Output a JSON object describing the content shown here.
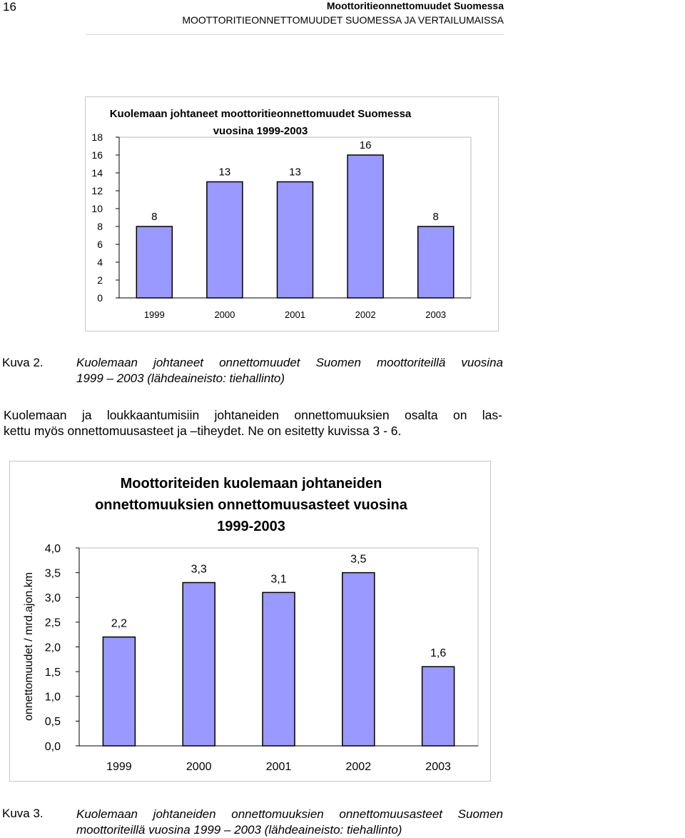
{
  "header": {
    "page_number": "16",
    "running_title": "Moottoritieonnettomuudet Suomessa",
    "running_subtitle": "MOOTTORITIEONNETTOMUUDET SUOMESSA JA VERTAILUMAISSA"
  },
  "figure2": {
    "label": "Kuva 2.",
    "caption_line1": "Kuolemaan johtaneet onnettomuudet Suomen moottoriteillä vuosina",
    "caption_line2": "1999 – 2003 (lähdeaineisto: tiehallinto)"
  },
  "paragraph": {
    "line1": "Kuolemaan ja loukkaantumisiin johtaneiden onnettomuuksien osalta on las-",
    "line2": "kettu myös onnettomuusasteet ja –tiheydet. Ne on esitetty kuvissa 3 - 6."
  },
  "figure3": {
    "label": "Kuva 3.",
    "caption_line1": "Kuolemaan johtaneiden onnettomuuksien onnettomuusasteet Suomen",
    "caption_line2": "moottoriteillä vuosina 1999 – 2003 (lähdeaineisto: tiehallinto)"
  },
  "colors": {
    "bar_fill": "#9999ff",
    "bar_stroke": "#000000",
    "frame": "#c8c8c8",
    "grid": "#bbbbbb"
  },
  "chart_data": [
    {
      "type": "bar",
      "title_line1": "Kuolemaan johtaneet moottoritieonnettomuudet Suomessa",
      "title_line2": "vuosina 1999-2003",
      "categories": [
        "1999",
        "2000",
        "2001",
        "2002",
        "2003"
      ],
      "values": [
        8,
        13,
        13,
        16,
        8
      ],
      "data_labels": [
        "8",
        "13",
        "13",
        "16",
        "8"
      ],
      "ylim": [
        0,
        18
      ],
      "yticks": [
        "0",
        "2",
        "4",
        "6",
        "8",
        "10",
        "12",
        "14",
        "16",
        "18"
      ],
      "xlabel": "",
      "ylabel": "",
      "grid": false,
      "legend": "none"
    },
    {
      "type": "bar",
      "title_line1": "Moottoriteiden kuolemaan johtaneiden",
      "title_line2": "onnettomuuksien onnettomuusasteet vuosina",
      "title_line3": "1999-2003",
      "categories": [
        "1999",
        "2000",
        "2001",
        "2002",
        "2003"
      ],
      "values": [
        2.2,
        3.3,
        3.1,
        3.5,
        1.6
      ],
      "data_labels": [
        "2,2",
        "3,3",
        "3,1",
        "3,5",
        "1,6"
      ],
      "ylim": [
        0,
        4
      ],
      "yticks": [
        "0,0",
        "0,5",
        "1,0",
        "1,5",
        "2,0",
        "2,5",
        "3,0",
        "3,5",
        "4,0"
      ],
      "xlabel": "",
      "ylabel": "onnettomuudet / mrd.ajon.km",
      "grid": false,
      "legend": "none"
    }
  ]
}
